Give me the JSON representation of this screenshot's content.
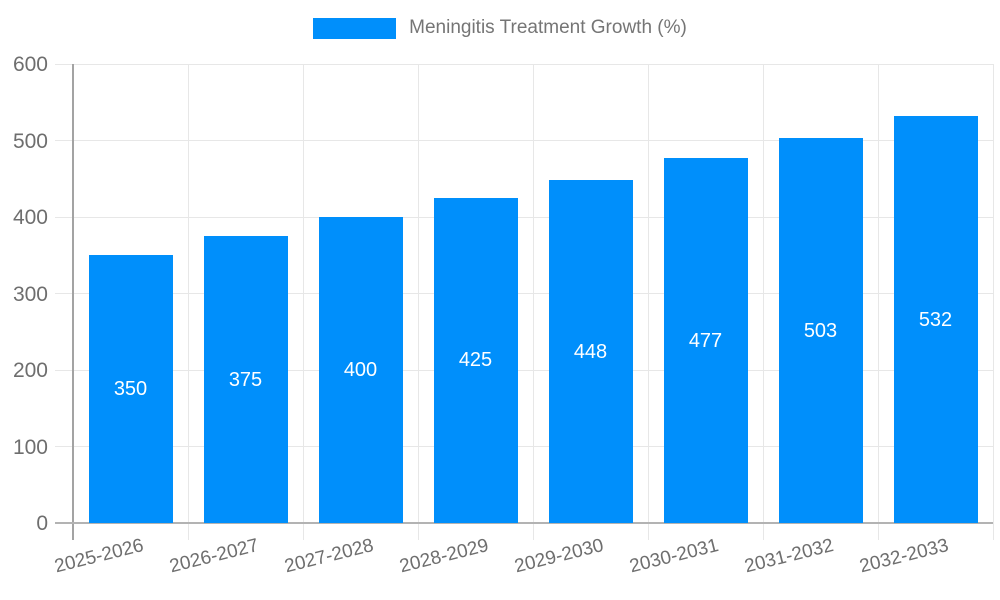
{
  "chart_data": {
    "type": "bar",
    "title": "",
    "series_name": "Meningitis Treatment Growth (%)",
    "categories": [
      "2025-2026",
      "2026-2027",
      "2027-2028",
      "2028-2029",
      "2029-2030",
      "2030-2031",
      "2031-2032",
      "2032-2033"
    ],
    "values": [
      350,
      375,
      400,
      425,
      448,
      477,
      503,
      532
    ],
    "ylim": [
      0,
      600
    ],
    "yticks": [
      0,
      100,
      200,
      300,
      400,
      500,
      600
    ],
    "grid": true,
    "legend_position": "top",
    "xlabel": "",
    "ylabel": "",
    "x_label_rotation_deg": -14,
    "value_labels_inside_bars": true,
    "colors": {
      "bar": "#008FFB",
      "value_label": "#ffffff",
      "axis_label": "#6e6e6e",
      "legend_text": "#757575",
      "grid_line": "#e7e7e7",
      "axis_line": "#a9a9a9",
      "background": "#ffffff"
    }
  }
}
